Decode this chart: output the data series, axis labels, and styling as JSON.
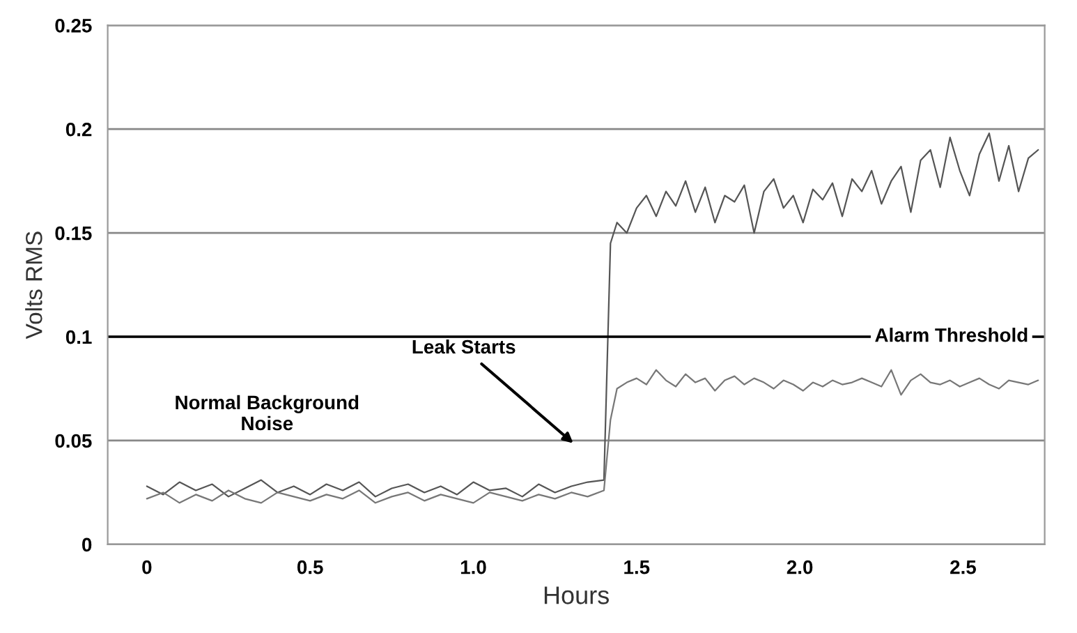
{
  "chart_data": {
    "type": "line",
    "xlabel": "Hours",
    "ylabel": "Volts RMS",
    "x": [
      0,
      0.05,
      0.1,
      0.15,
      0.2,
      0.25,
      0.3,
      0.35,
      0.4,
      0.45,
      0.5,
      0.55,
      0.6,
      0.65,
      0.7,
      0.75,
      0.8,
      0.85,
      0.9,
      0.95,
      1.0,
      1.05,
      1.1,
      1.15,
      1.2,
      1.25,
      1.3,
      1.35,
      1.4,
      1.42,
      1.44,
      1.47,
      1.5,
      1.53,
      1.56,
      1.59,
      1.62,
      1.65,
      1.68,
      1.71,
      1.74,
      1.77,
      1.8,
      1.83,
      1.86,
      1.89,
      1.92,
      1.95,
      1.98,
      2.01,
      2.04,
      2.07,
      2.1,
      2.13,
      2.16,
      2.19,
      2.22,
      2.25,
      2.28,
      2.31,
      2.34,
      2.37,
      2.4,
      2.43,
      2.46,
      2.49,
      2.52,
      2.55,
      2.58,
      2.61,
      2.64,
      2.67,
      2.7,
      2.73
    ],
    "series": [
      {
        "color": "#555555",
        "values": [
          0.028,
          0.024,
          0.03,
          0.026,
          0.029,
          0.023,
          0.027,
          0.031,
          0.025,
          0.028,
          0.024,
          0.029,
          0.026,
          0.03,
          0.023,
          0.027,
          0.029,
          0.025,
          0.028,
          0.024,
          0.03,
          0.026,
          0.027,
          0.023,
          0.029,
          0.025,
          0.028,
          0.03,
          0.031,
          0.145,
          0.155,
          0.15,
          0.162,
          0.168,
          0.158,
          0.17,
          0.163,
          0.175,
          0.16,
          0.172,
          0.155,
          0.168,
          0.165,
          0.173,
          0.15,
          0.17,
          0.176,
          0.162,
          0.168,
          0.155,
          0.171,
          0.166,
          0.174,
          0.158,
          0.176,
          0.17,
          0.18,
          0.164,
          0.175,
          0.182,
          0.16,
          0.185,
          0.19,
          0.172,
          0.196,
          0.18,
          0.168,
          0.188,
          0.198,
          0.175,
          0.192,
          0.17,
          0.186,
          0.19
        ]
      },
      {
        "color": "#777777",
        "values": [
          0.022,
          0.025,
          0.02,
          0.024,
          0.021,
          0.026,
          0.022,
          0.02,
          0.025,
          0.023,
          0.021,
          0.024,
          0.022,
          0.026,
          0.02,
          0.023,
          0.025,
          0.021,
          0.024,
          0.022,
          0.02,
          0.025,
          0.023,
          0.021,
          0.024,
          0.022,
          0.025,
          0.023,
          0.026,
          0.06,
          0.075,
          0.078,
          0.08,
          0.077,
          0.084,
          0.079,
          0.076,
          0.082,
          0.078,
          0.08,
          0.074,
          0.079,
          0.081,
          0.077,
          0.08,
          0.078,
          0.075,
          0.079,
          0.077,
          0.074,
          0.078,
          0.076,
          0.079,
          0.077,
          0.078,
          0.08,
          0.078,
          0.076,
          0.084,
          0.072,
          0.079,
          0.082,
          0.078,
          0.077,
          0.079,
          0.076,
          0.078,
          0.08,
          0.077,
          0.075,
          0.079,
          0.078,
          0.077,
          0.079
        ]
      }
    ],
    "xlim": [
      -0.12,
      2.75
    ],
    "xticks": [
      0,
      {
        "value": 0.5,
        "label": "0.5"
      },
      {
        "value": 1.0,
        "label": "1.0"
      },
      {
        "value": 1.5,
        "label": "1.5"
      },
      {
        "value": 2.0,
        "label": "2.0"
      },
      {
        "value": 2.5,
        "label": "2.5"
      }
    ],
    "ylim": [
      0,
      0.25
    ],
    "yticks": [
      0,
      0.05,
      0.1,
      0.15,
      0.2,
      0.25
    ],
    "grid": "y",
    "ref_lines": [
      {
        "axis": "y",
        "value": 0.1,
        "label": "Alarm Threshold",
        "color": "#000000"
      }
    ],
    "annotations": [
      "Normal Background\nNoise",
      "Leak Starts"
    ]
  }
}
